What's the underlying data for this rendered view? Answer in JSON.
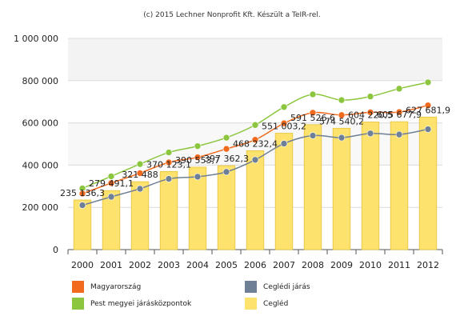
{
  "credit": "(c) 2015 Lechner Nonprofit Kft. Készült a TeIR-rel.",
  "colors": {
    "bar": "#fde36e",
    "bar_stroke": "#e8c23a",
    "magyarorszag": "#f16a1e",
    "pest": "#8cc63f",
    "ceglédi_jaras": "#6f7f95",
    "plot_band": "#f3f3f3"
  },
  "chart_data": {
    "type": "bar+line",
    "x": [
      "2000",
      "2001",
      "2002",
      "2003",
      "2004",
      "2005",
      "2006",
      "2007",
      "2008",
      "2009",
      "2010",
      "2011",
      "2012"
    ],
    "ylim": [
      0,
      1000000
    ],
    "yticks": [
      0,
      200000,
      400000,
      600000,
      800000,
      1000000
    ],
    "ytick_labels": [
      "0",
      "200 000",
      "400 000",
      "600 000",
      "800 000",
      "1 000 000"
    ],
    "series": [
      {
        "name": "Cegléd",
        "type": "bar",
        "values": [
          235136.3,
          279491.1,
          321488,
          370123.1,
          390553.7,
          397362.3,
          468232.4,
          551003.2,
          591526.6,
          574540.2,
          604220.5,
          605677.9,
          627681.9
        ],
        "labels": [
          "235 136,3",
          "279 491,1",
          "321 488",
          "370 123,1",
          "390 553,7",
          "397 362,3",
          "468 232,4",
          "551 003,2",
          "591 526,6",
          "574 540,2",
          "604 220,5",
          "605 677,9",
          "627 681,9"
        ]
      },
      {
        "name": "Magyarország",
        "type": "line",
        "values": [
          265000,
          315000,
          362000,
          413000,
          437000,
          477000,
          520000,
          598000,
          648000,
          637000,
          650000,
          651000,
          683000
        ]
      },
      {
        "name": "Pest megyei járásközpontok",
        "type": "line",
        "values": [
          290000,
          347000,
          405000,
          460000,
          490000,
          530000,
          590000,
          675000,
          735000,
          708000,
          725000,
          762000,
          792000
        ]
      },
      {
        "name": "Ceglédi járás",
        "type": "line",
        "values": [
          210000,
          250000,
          288000,
          335000,
          345000,
          368000,
          425000,
          502000,
          540000,
          530000,
          550000,
          545000,
          570000
        ]
      }
    ],
    "legend": [
      {
        "name": "Magyarország",
        "color": "#f16a1e"
      },
      {
        "name": "Ceglédi járás",
        "color": "#6f7f95"
      },
      {
        "name": "Pest megyei járásközpontok",
        "color": "#8cc63f"
      },
      {
        "name": "Cegléd",
        "color": "#fde36e"
      }
    ],
    "legend_placement": "bottom",
    "grid": true
  }
}
